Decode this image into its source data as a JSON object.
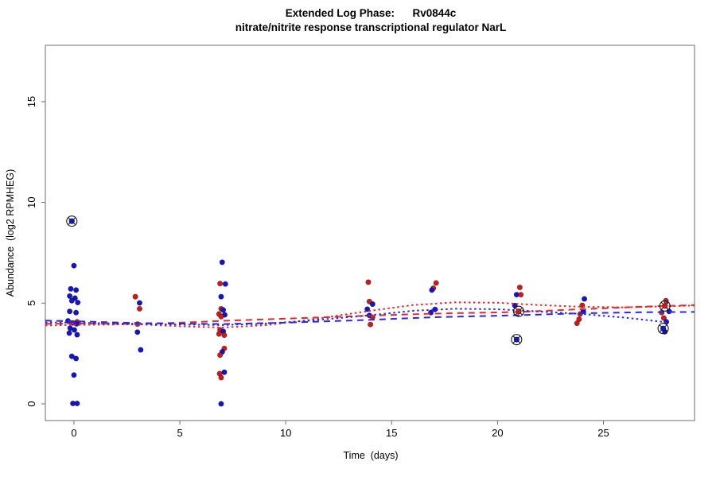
{
  "chart_data": {
    "type": "scatter",
    "title": "Extended Log Phase:      Rv0844c",
    "subtitle": "nitrate/nitrite response transcriptional regulator NarL",
    "xlabel": "Time  (days)",
    "ylabel": "Abundance  (log2 RPMHEG)",
    "x_ticks": [
      0,
      5,
      10,
      15,
      20,
      25
    ],
    "y_ticks": [
      0,
      5,
      10,
      15
    ],
    "xlim": [
      -1.35,
      29.3
    ],
    "ylim": [
      -0.83,
      17.8
    ],
    "grid": false,
    "legend": "none",
    "colors": {
      "blue_point": "#1414C8",
      "red_point": "#CE1A1A",
      "blue_line": "#2828E6",
      "red_line": "#E62828",
      "axis": "#6e6e6e",
      "tick_text": "#000000",
      "marker_outline": "#1a1a1a"
    },
    "points_legend": "each point = [day, abundance, color b|r, circled 0|1]",
    "points": [
      [
        -0.1,
        9.07,
        "b",
        1
      ],
      [
        0.0,
        6.86,
        "b",
        0
      ],
      [
        -0.15,
        5.71,
        "b",
        0
      ],
      [
        0.1,
        5.65,
        "b",
        0
      ],
      [
        -0.2,
        5.35,
        "b",
        0
      ],
      [
        0.05,
        5.25,
        "b",
        0
      ],
      [
        -0.1,
        5.12,
        "b",
        0
      ],
      [
        0.18,
        5.03,
        "b",
        0
      ],
      [
        -0.2,
        4.59,
        "b",
        0
      ],
      [
        0.1,
        4.53,
        "b",
        0
      ],
      [
        0.15,
        4.07,
        "r",
        0
      ],
      [
        -0.28,
        4.12,
        "b",
        0
      ],
      [
        -0.05,
        4.02,
        "b",
        0
      ],
      [
        0.12,
        3.97,
        "b",
        0
      ],
      [
        -0.18,
        3.76,
        "b",
        0
      ],
      [
        0.02,
        3.67,
        "b",
        0
      ],
      [
        -0.22,
        3.51,
        "b",
        0
      ],
      [
        0.15,
        3.43,
        "b",
        0
      ],
      [
        -0.1,
        2.36,
        "b",
        0
      ],
      [
        0.1,
        2.25,
        "b",
        0
      ],
      [
        0.0,
        1.43,
        "b",
        0
      ],
      [
        -0.05,
        0.02,
        "b",
        0
      ],
      [
        0.15,
        0.02,
        "b",
        0
      ],
      [
        2.9,
        5.32,
        "r",
        0
      ],
      [
        3.1,
        5.01,
        "b",
        0
      ],
      [
        3.1,
        4.72,
        "r",
        0
      ],
      [
        3.0,
        3.96,
        "r",
        0
      ],
      [
        3.0,
        3.56,
        "b",
        0
      ],
      [
        3.15,
        2.68,
        "b",
        0
      ],
      [
        7.0,
        7.03,
        "b",
        0
      ],
      [
        6.9,
        5.97,
        "r",
        0
      ],
      [
        7.15,
        5.95,
        "b",
        0
      ],
      [
        6.95,
        5.32,
        "b",
        0
      ],
      [
        6.95,
        4.72,
        "r",
        0
      ],
      [
        7.05,
        4.66,
        "b",
        0
      ],
      [
        6.85,
        4.46,
        "r",
        0
      ],
      [
        7.12,
        4.42,
        "b",
        0
      ],
      [
        6.95,
        4.33,
        "r",
        0
      ],
      [
        6.9,
        3.67,
        "r",
        0
      ],
      [
        7.05,
        3.6,
        "b",
        0
      ],
      [
        6.85,
        3.47,
        "r",
        0
      ],
      [
        7.1,
        3.41,
        "r",
        0
      ],
      [
        7.1,
        2.75,
        "r",
        0
      ],
      [
        7.0,
        2.58,
        "b",
        0
      ],
      [
        6.9,
        2.42,
        "r",
        0
      ],
      [
        7.1,
        1.57,
        "b",
        0
      ],
      [
        6.88,
        1.5,
        "r",
        0
      ],
      [
        6.95,
        1.3,
        "r",
        0
      ],
      [
        6.95,
        0.0,
        "b",
        0
      ],
      [
        13.9,
        6.04,
        "r",
        0
      ],
      [
        13.95,
        5.08,
        "r",
        0
      ],
      [
        14.1,
        4.95,
        "b",
        0
      ],
      [
        13.85,
        4.7,
        "b",
        0
      ],
      [
        13.95,
        4.39,
        "b",
        0
      ],
      [
        14.1,
        4.3,
        "r",
        0
      ],
      [
        14.0,
        3.94,
        "r",
        0
      ],
      [
        17.1,
        6.0,
        "r",
        0
      ],
      [
        16.97,
        5.74,
        "r",
        0
      ],
      [
        16.9,
        5.65,
        "b",
        0
      ],
      [
        17.05,
        4.69,
        "b",
        0
      ],
      [
        16.85,
        4.53,
        "b",
        0
      ],
      [
        21.05,
        5.78,
        "r",
        0
      ],
      [
        20.9,
        5.42,
        "b",
        0
      ],
      [
        21.1,
        5.42,
        "r",
        0
      ],
      [
        20.82,
        4.88,
        "b",
        0
      ],
      [
        21.0,
        4.59,
        "r",
        1
      ],
      [
        20.9,
        3.19,
        "b",
        1
      ],
      [
        24.1,
        5.21,
        "b",
        0
      ],
      [
        24.0,
        4.89,
        "r",
        0
      ],
      [
        24.05,
        4.59,
        "b",
        0
      ],
      [
        23.9,
        4.46,
        "r",
        0
      ],
      [
        23.85,
        4.2,
        "r",
        0
      ],
      [
        23.75,
        4.0,
        "r",
        0
      ],
      [
        27.95,
        5.12,
        "r",
        0
      ],
      [
        27.9,
        4.86,
        "r",
        1
      ],
      [
        28.1,
        4.59,
        "b",
        0
      ],
      [
        27.75,
        4.53,
        "r",
        0
      ],
      [
        27.85,
        4.26,
        "r",
        0
      ],
      [
        27.97,
        4.07,
        "b",
        0
      ],
      [
        27.82,
        3.74,
        "b",
        1
      ],
      [
        27.9,
        3.58,
        "b",
        0
      ]
    ],
    "trend_lines": [
      {
        "name": "red-dashed-fit",
        "color": "red",
        "style": "dashed",
        "points": [
          [
            -1.35,
            3.97
          ],
          [
            0,
            3.99
          ],
          [
            3,
            3.96
          ],
          [
            5,
            4.03
          ],
          [
            7,
            4.12
          ],
          [
            10,
            4.23
          ],
          [
            14,
            4.38
          ],
          [
            17,
            4.48
          ],
          [
            21,
            4.56
          ],
          [
            24,
            4.7
          ],
          [
            27,
            4.83
          ],
          [
            29.3,
            4.9
          ]
        ]
      },
      {
        "name": "blue-dashed-fit",
        "color": "blue",
        "style": "dashed",
        "points": [
          [
            -1.35,
            4.13
          ],
          [
            0,
            4.1
          ],
          [
            3,
            4.01
          ],
          [
            7,
            3.96
          ],
          [
            10,
            4.03
          ],
          [
            14,
            4.17
          ],
          [
            17,
            4.3
          ],
          [
            21,
            4.4
          ],
          [
            24,
            4.5
          ],
          [
            27,
            4.55
          ],
          [
            29.3,
            4.56
          ]
        ]
      },
      {
        "name": "red-dotted-fit",
        "color": "red",
        "style": "dotted",
        "points": [
          [
            -1.35,
            3.89
          ],
          [
            0,
            3.92
          ],
          [
            3,
            3.95
          ],
          [
            5,
            3.85
          ],
          [
            7,
            3.79
          ],
          [
            9,
            3.9
          ],
          [
            11,
            4.15
          ],
          [
            14,
            4.62
          ],
          [
            16,
            4.9
          ],
          [
            18,
            5.04
          ],
          [
            20,
            5.02
          ],
          [
            22,
            4.9
          ],
          [
            24,
            4.82
          ],
          [
            26,
            4.79
          ],
          [
            28,
            4.84
          ],
          [
            29.3,
            4.88
          ]
        ]
      },
      {
        "name": "blue-dotted-fit",
        "color": "blue",
        "style": "dotted",
        "points": [
          [
            -1.35,
            4.04
          ],
          [
            0,
            4.03
          ],
          [
            3,
            3.97
          ],
          [
            7,
            3.91
          ],
          [
            9,
            3.98
          ],
          [
            11,
            4.12
          ],
          [
            14,
            4.4
          ],
          [
            16,
            4.62
          ],
          [
            18,
            4.72
          ],
          [
            20,
            4.7
          ],
          [
            22,
            4.58
          ],
          [
            24,
            4.46
          ],
          [
            26,
            4.28
          ],
          [
            28,
            4.05
          ]
        ]
      }
    ]
  }
}
